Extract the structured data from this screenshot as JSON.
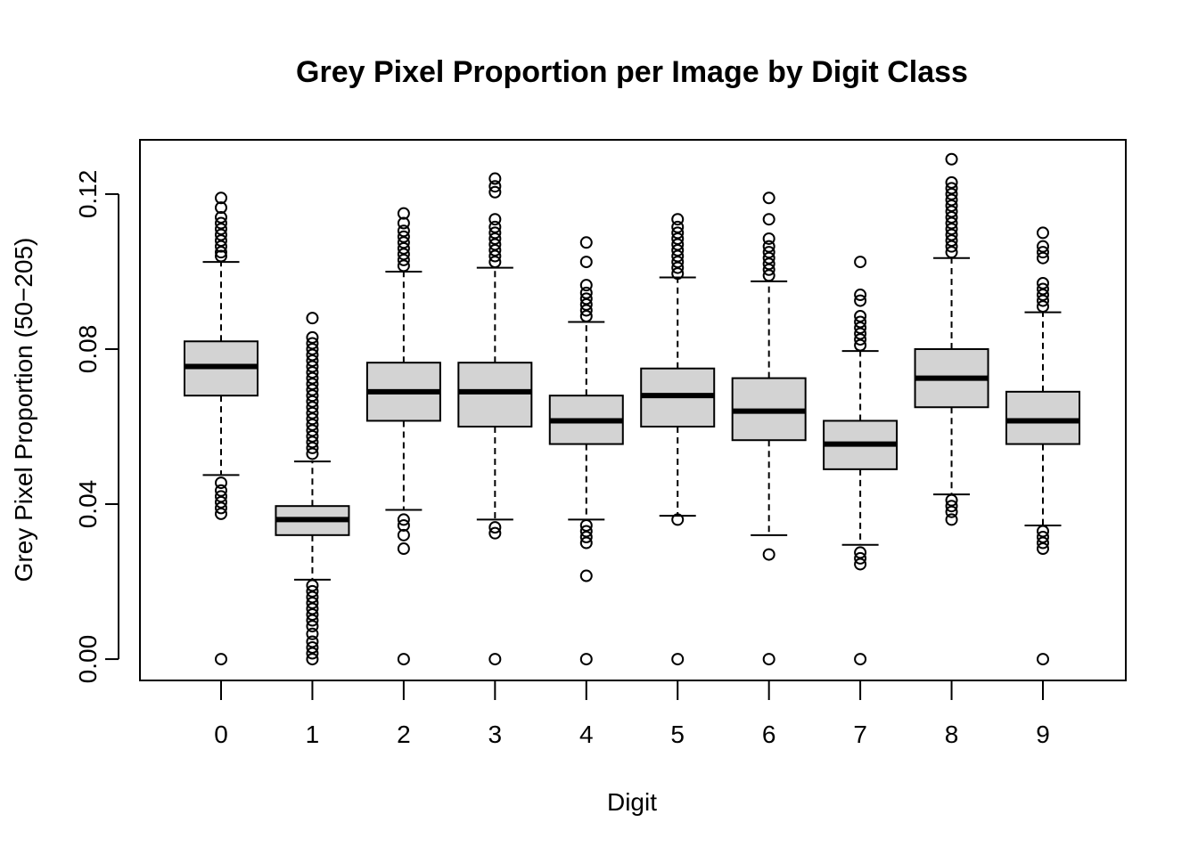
{
  "chart_data": {
    "type": "boxplot",
    "title": "Grey Pixel Proportion per Image by Digit Class",
    "xlabel": "Digit",
    "ylabel": "Grey Pixel Proportion (50−205)",
    "ylim": [
      -0.0055,
      0.134
    ],
    "y_ticks": [
      "0.00",
      "0.04",
      "0.08",
      "0.12"
    ],
    "box_fill": "#d3d3d3",
    "grid": false,
    "legend": "none",
    "categories": [
      "0",
      "1",
      "2",
      "3",
      "4",
      "5",
      "6",
      "7",
      "8",
      "9"
    ],
    "boxes": [
      {
        "whisker_low": 0.0475,
        "q1": 0.068,
        "median": 0.0755,
        "q3": 0.082,
        "whisker_high": 0.1025,
        "outliers": [
          0.0,
          0.0375,
          0.039,
          0.0405,
          0.042,
          0.0435,
          0.0455,
          0.104,
          0.105,
          0.1065,
          0.108,
          0.1095,
          0.111,
          0.1125,
          0.114,
          0.1165,
          0.119
        ]
      },
      {
        "whisker_low": 0.0205,
        "q1": 0.032,
        "median": 0.036,
        "q3": 0.0395,
        "whisker_high": 0.051,
        "outliers": [
          0.0,
          0.0015,
          0.003,
          0.0045,
          0.0065,
          0.0085,
          0.01,
          0.0115,
          0.013,
          0.0145,
          0.016,
          0.0175,
          0.019,
          0.053,
          0.0545,
          0.056,
          0.0575,
          0.059,
          0.0605,
          0.062,
          0.0635,
          0.065,
          0.0665,
          0.068,
          0.0695,
          0.071,
          0.0725,
          0.074,
          0.0755,
          0.077,
          0.0785,
          0.08,
          0.0815,
          0.083,
          0.088
        ]
      },
      {
        "whisker_low": 0.0385,
        "q1": 0.0615,
        "median": 0.069,
        "q3": 0.0765,
        "whisker_high": 0.1,
        "outliers": [
          0.0,
          0.0285,
          0.032,
          0.0345,
          0.036,
          0.1015,
          0.103,
          0.1045,
          0.106,
          0.1075,
          0.109,
          0.1105,
          0.1125,
          0.115
        ]
      },
      {
        "whisker_low": 0.036,
        "q1": 0.06,
        "median": 0.069,
        "q3": 0.0765,
        "whisker_high": 0.101,
        "outliers": [
          0.0,
          0.0325,
          0.034,
          0.1025,
          0.104,
          0.1055,
          0.107,
          0.1085,
          0.11,
          0.1115,
          0.1135,
          0.1205,
          0.122,
          0.124
        ]
      },
      {
        "whisker_low": 0.036,
        "q1": 0.0555,
        "median": 0.0615,
        "q3": 0.068,
        "whisker_high": 0.087,
        "outliers": [
          0.0,
          0.0215,
          0.03,
          0.0315,
          0.033,
          0.0345,
          0.0885,
          0.09,
          0.0915,
          0.093,
          0.0945,
          0.0965,
          0.1025,
          0.1075
        ]
      },
      {
        "whisker_low": 0.037,
        "q1": 0.06,
        "median": 0.068,
        "q3": 0.075,
        "whisker_high": 0.0985,
        "outliers": [
          0.0,
          0.036,
          0.0995,
          0.101,
          0.1025,
          0.104,
          0.1055,
          0.107,
          0.1085,
          0.11,
          0.1115,
          0.1135
        ]
      },
      {
        "whisker_low": 0.032,
        "q1": 0.0565,
        "median": 0.064,
        "q3": 0.0725,
        "whisker_high": 0.0975,
        "outliers": [
          0.0,
          0.027,
          0.099,
          0.1005,
          0.102,
          0.1035,
          0.105,
          0.1065,
          0.1085,
          0.1135,
          0.119
        ]
      },
      {
        "whisker_low": 0.0295,
        "q1": 0.049,
        "median": 0.0555,
        "q3": 0.0615,
        "whisker_high": 0.0795,
        "outliers": [
          0.0,
          0.0245,
          0.026,
          0.0275,
          0.081,
          0.0825,
          0.084,
          0.0855,
          0.087,
          0.0885,
          0.0925,
          0.094,
          0.1025
        ]
      },
      {
        "whisker_low": 0.0425,
        "q1": 0.065,
        "median": 0.0725,
        "q3": 0.08,
        "whisker_high": 0.1035,
        "outliers": [
          0.036,
          0.038,
          0.0395,
          0.041,
          0.105,
          0.1065,
          0.108,
          0.1095,
          0.111,
          0.1125,
          0.114,
          0.1155,
          0.117,
          0.1185,
          0.12,
          0.1215,
          0.123,
          0.129
        ]
      },
      {
        "whisker_low": 0.0345,
        "q1": 0.0555,
        "median": 0.0615,
        "q3": 0.069,
        "whisker_high": 0.0895,
        "outliers": [
          0.0,
          0.0285,
          0.03,
          0.0315,
          0.033,
          0.091,
          0.0925,
          0.094,
          0.0955,
          0.097,
          0.1035,
          0.105,
          0.1065,
          0.11
        ]
      }
    ]
  }
}
